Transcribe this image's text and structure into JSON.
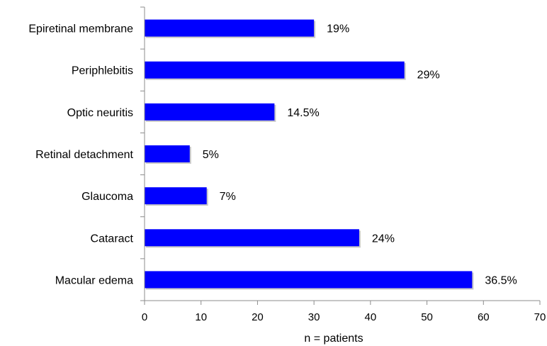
{
  "chart_data": {
    "type": "bar",
    "orientation": "horizontal",
    "categories": [
      "Epiretinal membrane",
      "Periphlebitis",
      "Optic neuritis",
      "Retinal detachment",
      "Glaucoma",
      "Cataract",
      "Macular edema"
    ],
    "values": [
      30,
      46,
      23,
      8,
      11,
      38,
      58
    ],
    "data_labels": [
      "19%",
      "29%",
      "14.5%",
      "5%",
      "7%",
      "24%",
      "36.5%"
    ],
    "xlabel": "n = patients",
    "xlim": [
      0,
      70
    ],
    "xticks": [
      "0",
      "10",
      "20",
      "30",
      "40",
      "50",
      "60",
      "70"
    ],
    "grid": false,
    "legend": "none",
    "bar_color": "#0000ff",
    "bar_shadow_color": "#9a9a9a",
    "axis_color": "#8c8c8c"
  }
}
